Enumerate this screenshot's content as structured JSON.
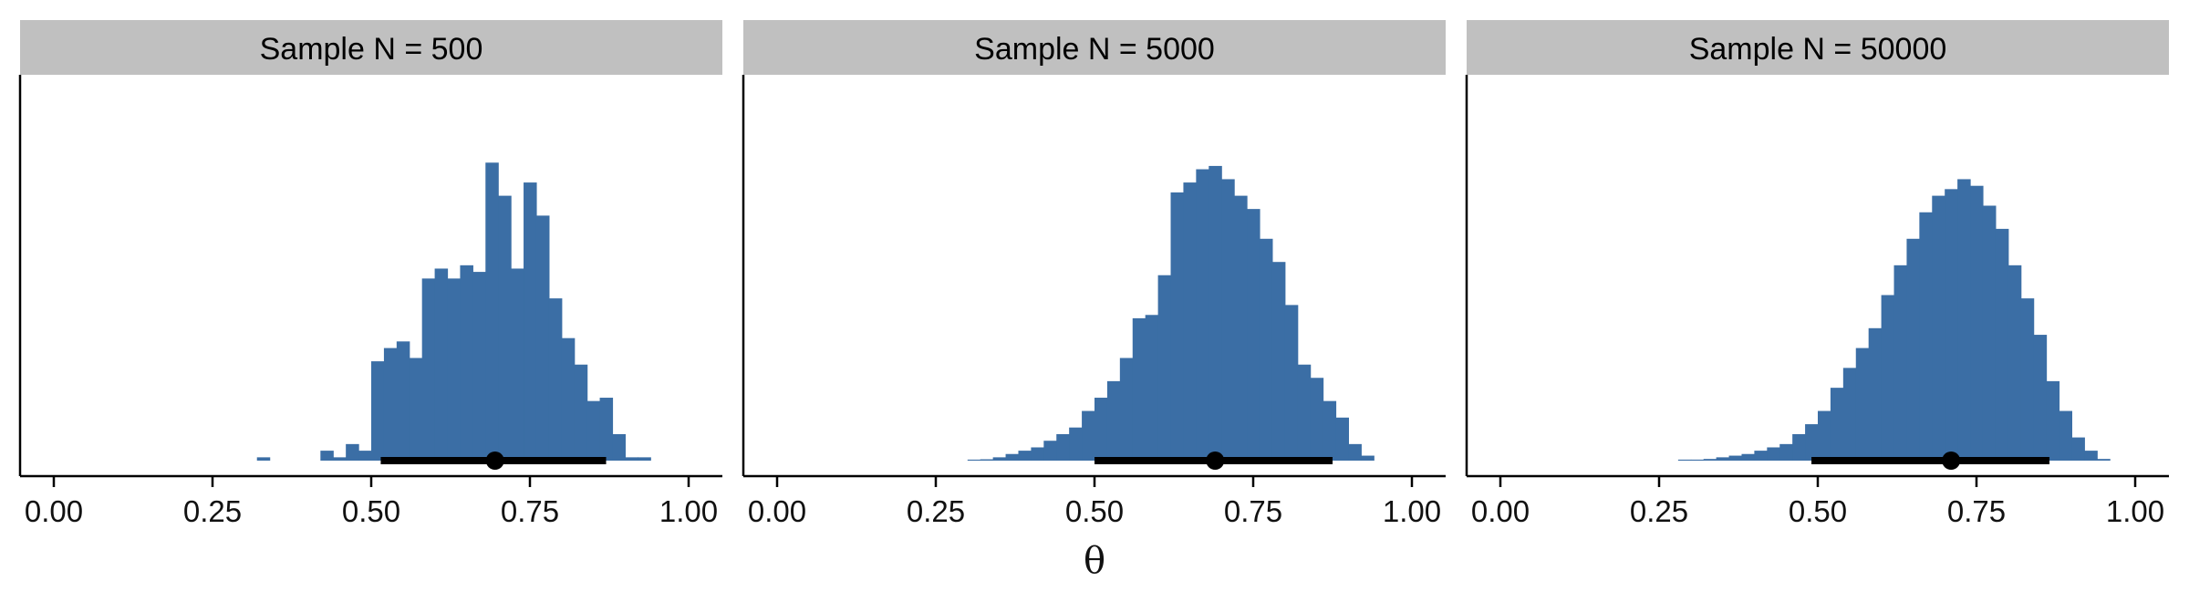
{
  "chart_data": [
    {
      "type": "histogram",
      "title": "Sample N = 500",
      "xlabel": "θ",
      "xlim": [
        0,
        1
      ],
      "xticks": [
        0,
        0.25,
        0.5,
        0.75,
        1
      ],
      "xtick_labels": [
        "0.00",
        "0.25",
        "0.50",
        "0.75",
        "1.00"
      ],
      "bin_width": 0.02,
      "bins": [
        {
          "x": 0.32,
          "count": 1
        },
        {
          "x": 0.42,
          "count": 3
        },
        {
          "x": 0.44,
          "count": 1
        },
        {
          "x": 0.46,
          "count": 5
        },
        {
          "x": 0.48,
          "count": 3
        },
        {
          "x": 0.5,
          "count": 30
        },
        {
          "x": 0.52,
          "count": 34
        },
        {
          "x": 0.54,
          "count": 36
        },
        {
          "x": 0.56,
          "count": 31
        },
        {
          "x": 0.58,
          "count": 55
        },
        {
          "x": 0.6,
          "count": 58
        },
        {
          "x": 0.62,
          "count": 55
        },
        {
          "x": 0.64,
          "count": 59
        },
        {
          "x": 0.66,
          "count": 57
        },
        {
          "x": 0.68,
          "count": 90
        },
        {
          "x": 0.7,
          "count": 80
        },
        {
          "x": 0.72,
          "count": 58
        },
        {
          "x": 0.74,
          "count": 84
        },
        {
          "x": 0.76,
          "count": 74
        },
        {
          "x": 0.78,
          "count": 49
        },
        {
          "x": 0.8,
          "count": 37
        },
        {
          "x": 0.82,
          "count": 29
        },
        {
          "x": 0.84,
          "count": 18
        },
        {
          "x": 0.86,
          "count": 19
        },
        {
          "x": 0.88,
          "count": 8
        },
        {
          "x": 0.9,
          "count": 1
        },
        {
          "x": 0.92,
          "count": 1
        }
      ],
      "point_estimate": 0.695,
      "interval": [
        0.515,
        0.87
      ],
      "color": "#3b6ea5"
    },
    {
      "type": "histogram",
      "title": "Sample N = 5000",
      "xlabel": "θ",
      "xlim": [
        0,
        1
      ],
      "xticks": [
        0,
        0.25,
        0.5,
        0.75,
        1
      ],
      "xtick_labels": [
        "0.00",
        "0.25",
        "0.50",
        "0.75",
        "1.00"
      ],
      "bin_width": 0.02,
      "bins": [
        {
          "x": 0.3,
          "count": 0.3
        },
        {
          "x": 0.32,
          "count": 0.4
        },
        {
          "x": 0.34,
          "count": 1
        },
        {
          "x": 0.36,
          "count": 2
        },
        {
          "x": 0.38,
          "count": 3
        },
        {
          "x": 0.4,
          "count": 4
        },
        {
          "x": 0.42,
          "count": 6
        },
        {
          "x": 0.44,
          "count": 8
        },
        {
          "x": 0.46,
          "count": 10
        },
        {
          "x": 0.48,
          "count": 15
        },
        {
          "x": 0.5,
          "count": 19
        },
        {
          "x": 0.52,
          "count": 24
        },
        {
          "x": 0.54,
          "count": 31
        },
        {
          "x": 0.56,
          "count": 43
        },
        {
          "x": 0.58,
          "count": 44
        },
        {
          "x": 0.6,
          "count": 56
        },
        {
          "x": 0.62,
          "count": 81
        },
        {
          "x": 0.64,
          "count": 84
        },
        {
          "x": 0.66,
          "count": 88
        },
        {
          "x": 0.68,
          "count": 89
        },
        {
          "x": 0.7,
          "count": 85
        },
        {
          "x": 0.72,
          "count": 80
        },
        {
          "x": 0.74,
          "count": 76
        },
        {
          "x": 0.76,
          "count": 67
        },
        {
          "x": 0.78,
          "count": 60
        },
        {
          "x": 0.8,
          "count": 47
        },
        {
          "x": 0.82,
          "count": 29
        },
        {
          "x": 0.84,
          "count": 25
        },
        {
          "x": 0.86,
          "count": 18
        },
        {
          "x": 0.88,
          "count": 13
        },
        {
          "x": 0.9,
          "count": 5
        },
        {
          "x": 0.92,
          "count": 1.5
        }
      ],
      "point_estimate": 0.69,
      "interval": [
        0.5,
        0.875
      ],
      "color": "#3b6ea5"
    },
    {
      "type": "histogram",
      "title": "Sample N = 50000",
      "xlabel": "θ",
      "xlim": [
        0,
        1
      ],
      "xticks": [
        0,
        0.25,
        0.5,
        0.75,
        1
      ],
      "xtick_labels": [
        "0.00",
        "0.25",
        "0.50",
        "0.75",
        "1.00"
      ],
      "bin_width": 0.02,
      "bins": [
        {
          "x": 0.28,
          "count": 0.3
        },
        {
          "x": 0.3,
          "count": 0.3
        },
        {
          "x": 0.32,
          "count": 0.5
        },
        {
          "x": 0.34,
          "count": 1
        },
        {
          "x": 0.36,
          "count": 1.5
        },
        {
          "x": 0.38,
          "count": 2
        },
        {
          "x": 0.4,
          "count": 3
        },
        {
          "x": 0.42,
          "count": 4
        },
        {
          "x": 0.44,
          "count": 5
        },
        {
          "x": 0.46,
          "count": 8
        },
        {
          "x": 0.48,
          "count": 11
        },
        {
          "x": 0.5,
          "count": 15
        },
        {
          "x": 0.52,
          "count": 22
        },
        {
          "x": 0.54,
          "count": 28
        },
        {
          "x": 0.56,
          "count": 34
        },
        {
          "x": 0.58,
          "count": 40
        },
        {
          "x": 0.6,
          "count": 50
        },
        {
          "x": 0.62,
          "count": 59
        },
        {
          "x": 0.64,
          "count": 67
        },
        {
          "x": 0.66,
          "count": 75
        },
        {
          "x": 0.68,
          "count": 80
        },
        {
          "x": 0.7,
          "count": 82
        },
        {
          "x": 0.72,
          "count": 85
        },
        {
          "x": 0.74,
          "count": 83
        },
        {
          "x": 0.76,
          "count": 77
        },
        {
          "x": 0.78,
          "count": 70
        },
        {
          "x": 0.8,
          "count": 59
        },
        {
          "x": 0.82,
          "count": 49
        },
        {
          "x": 0.84,
          "count": 38
        },
        {
          "x": 0.86,
          "count": 24
        },
        {
          "x": 0.88,
          "count": 15
        },
        {
          "x": 0.9,
          "count": 7
        },
        {
          "x": 0.92,
          "count": 3
        },
        {
          "x": 0.94,
          "count": 0.5
        }
      ],
      "point_estimate": 0.71,
      "interval": [
        0.49,
        0.865
      ],
      "color": "#3b6ea5"
    }
  ],
  "shared_xlabel": "θ",
  "ylim": [
    0,
    100
  ],
  "strip_color": "#c0c0c0",
  "interval_color": "#000000"
}
